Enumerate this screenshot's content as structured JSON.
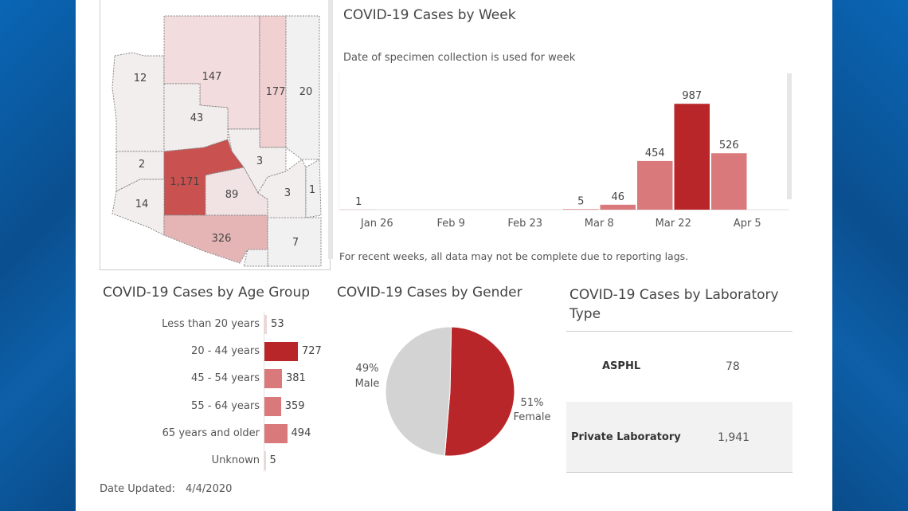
{
  "chart_data": [
    {
      "type": "map",
      "title": "",
      "regions": [
        {
          "name": "",
          "value": 12
        },
        {
          "name": "",
          "value": 147
        },
        {
          "name": "",
          "value": 177
        },
        {
          "name": "",
          "value": 20
        },
        {
          "name": "",
          "value": 43
        },
        {
          "name": "",
          "value": 2
        },
        {
          "name": "",
          "value": 3
        },
        {
          "name": "",
          "value": 1171,
          "label": "1,171"
        },
        {
          "name": "",
          "value": 89
        },
        {
          "name": "",
          "value": 3
        },
        {
          "name": "",
          "value": 1
        },
        {
          "name": "",
          "value": 14
        },
        {
          "name": "",
          "value": 326
        },
        {
          "name": "",
          "value": 7
        }
      ]
    },
    {
      "type": "bar",
      "title": "COVID-19 Cases by Week",
      "subtitle": "Date of specimen collection is used for week",
      "footnote": "For recent weeks, all data may not be complete due to reporting lags.",
      "x_ticks": [
        "Jan 26",
        "Feb 9",
        "Feb 23",
        "Mar 8",
        "Mar 22",
        "Apr 5"
      ],
      "bars": [
        {
          "week": 0,
          "value": 1
        },
        {
          "week": 6,
          "value": 5
        },
        {
          "week": 7,
          "value": 46
        },
        {
          "week": 8,
          "value": 454
        },
        {
          "week": 9,
          "value": 987
        },
        {
          "week": 10,
          "value": 526
        }
      ],
      "ylim": [
        0,
        1100
      ],
      "grid": false
    },
    {
      "type": "bar",
      "orientation": "horizontal",
      "title": "COVID-19 Cases by Age Group",
      "categories": [
        "Less than 20 years",
        "20 - 44 years",
        "45 - 54 years",
        "55 - 64 years",
        "65 years and older",
        "Unknown"
      ],
      "values": [
        53,
        727,
        381,
        359,
        494,
        5
      ]
    },
    {
      "type": "pie",
      "title": "COVID-19 Cases by Gender",
      "slices": [
        {
          "label": "Female",
          "percent": 51,
          "pct_label": "51%",
          "color": "#b9262a"
        },
        {
          "label": "Male",
          "percent": 49,
          "pct_label": "49%",
          "color": "#d3d3d3"
        }
      ]
    },
    {
      "type": "table",
      "title": "COVID-19 Cases by Laboratory Type",
      "rows": [
        {
          "label": "ASPHL",
          "value": "78"
        },
        {
          "label": "Private Laboratory",
          "value": "1,941"
        }
      ]
    }
  ],
  "footer": {
    "date_label": "Date Updated:",
    "date_value": "4/4/2020"
  },
  "colors": {
    "dark_red": "#b9262a",
    "light_red": "#d9797c",
    "pale_red": "#f0d5d6",
    "gray": "#d3d3d3"
  }
}
